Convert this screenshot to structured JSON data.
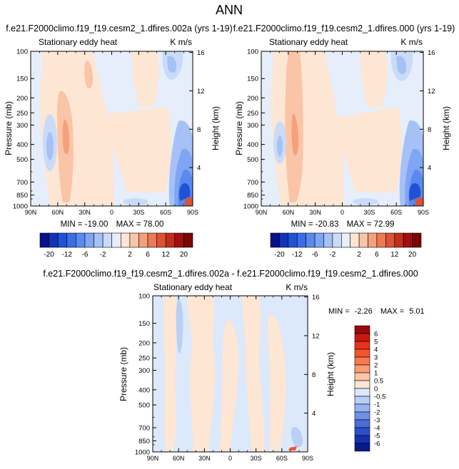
{
  "page_title": "ANN",
  "chart_data": [
    {
      "type": "heatmap",
      "title": "f.e21.F2000climo.f19_f19.cesm2_1.dfires.002a (yrs 1-19)",
      "subtitle_left": "Stationary eddy heat",
      "subtitle_right": "K m/s",
      "ylabel": "Pressure (mb)",
      "y2label": "Height (km)",
      "xticks": [
        "90N",
        "60N",
        "30N",
        "0",
        "30S",
        "60S",
        "90S"
      ],
      "yticks": [
        100,
        150,
        200,
        250,
        300,
        400,
        500,
        700,
        850,
        1000
      ],
      "y2ticks": [
        16,
        12,
        8,
        4
      ],
      "stats": {
        "min_label": "MIN = -19.00",
        "max_label": "MAX = 78.00",
        "min": -19.0,
        "max": 78.0
      },
      "colorbar": {
        "orientation": "horizontal",
        "tick_labels": [
          "-20",
          "-12",
          "-6",
          "-2",
          "2",
          "6",
          "12",
          "20"
        ]
      }
    },
    {
      "type": "heatmap",
      "title": "f.e21.F2000climo.f19_f19.cesm2_1.dfires.000 (yrs 1-19)",
      "subtitle_left": "Stationary eddy heat",
      "subtitle_right": "K m/s",
      "ylabel": "Pressure (mb)",
      "y2label": "Height (km)",
      "xticks": [
        "90N",
        "60N",
        "30N",
        "0",
        "30S",
        "60S",
        "90S"
      ],
      "yticks": [
        100,
        150,
        200,
        250,
        300,
        400,
        500,
        700,
        850,
        1000
      ],
      "y2ticks": [
        16,
        12,
        8,
        4
      ],
      "stats": {
        "min_label": "MIN = -20.83",
        "max_label": "MAX = 72.99",
        "min": -20.83,
        "max": 72.99
      },
      "colorbar": {
        "orientation": "horizontal",
        "tick_labels": [
          "-20",
          "-12",
          "-6",
          "-2",
          "2",
          "6",
          "12",
          "20"
        ]
      }
    },
    {
      "type": "heatmap",
      "title": "f.e21.F2000climo.f19_f19.cesm2_1.dfires.002a - f.e21.F2000climo.f19_f19.cesm2_1.dfires.000",
      "subtitle_left": "Stationary eddy heat",
      "subtitle_right": "K m/s",
      "ylabel": "Pressure (mb)",
      "y2label": "Height (km)",
      "xticks": [
        "90N",
        "60N",
        "30N",
        "0",
        "30S",
        "60S",
        "90S"
      ],
      "yticks": [
        100,
        150,
        200,
        250,
        300,
        400,
        500,
        700,
        850,
        1000
      ],
      "y2ticks": [
        16,
        12,
        8,
        4
      ],
      "stats": {
        "min_label": "MIN =",
        "min_value": "-2.26",
        "max_label": "MAX =",
        "max_value": "5.01",
        "min": -2.26,
        "max": 5.01
      },
      "colorbar": {
        "orientation": "vertical",
        "tick_labels": [
          "6",
          "5",
          "4",
          "3",
          "2",
          "1",
          "0.5",
          "0",
          "-0.5",
          "-1",
          "-2",
          "-3",
          "-4",
          "-5",
          "-6"
        ]
      }
    }
  ],
  "palettes": {
    "full": [
      "#08108c",
      "#1033b8",
      "#2052d8",
      "#3b6ee6",
      "#5a8af0",
      "#7fa6f4",
      "#a6c1f6",
      "#cadbf8",
      "#e5eefb",
      "#fde5d3",
      "#fac4a6",
      "#f5a07c",
      "#ec7a55",
      "#dc5235",
      "#c32d1c",
      "#a01010",
      "#7a0606"
    ],
    "diff": [
      "#9a0a0a",
      "#c8190f",
      "#e6331c",
      "#f2552e",
      "#f7794e",
      "#fa9d76",
      "#fcc6a8",
      "#fde6d4",
      "#dce8fb",
      "#b9cff6",
      "#96b4f0",
      "#6e91e6",
      "#4a6edb",
      "#2b4fcc",
      "#1530b0",
      "#081b8c"
    ]
  }
}
